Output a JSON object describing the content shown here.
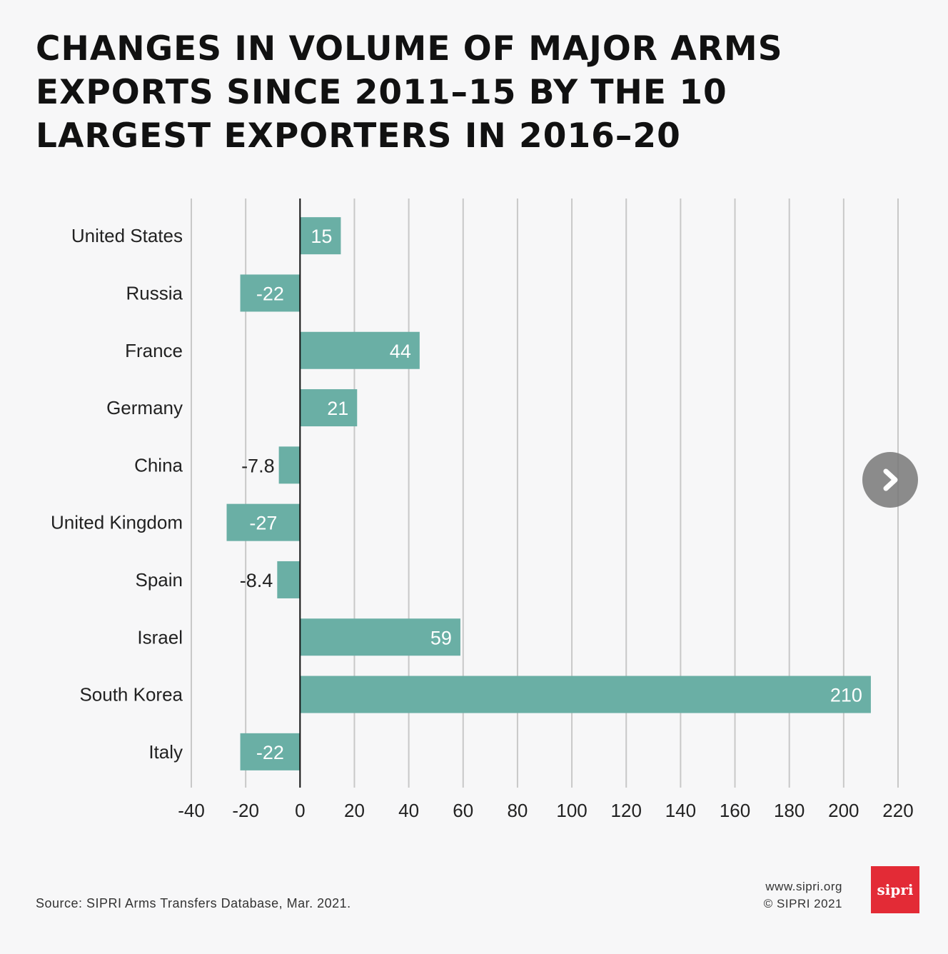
{
  "title_lines": [
    "CHANGES IN VOLUME OF MAJOR ARMS",
    "EXPORTS SINCE 2011–15 BY THE 10",
    "LARGEST EXPORTERS IN 2016–20"
  ],
  "chart_data": {
    "type": "bar",
    "orientation": "horizontal",
    "title": "CHANGES IN VOLUME OF MAJOR ARMS EXPORTS SINCE 2011–15 BY THE 10 LARGEST EXPORTERS IN 2016–20",
    "categories": [
      "United States",
      "Russia",
      "France",
      "Germany",
      "China",
      "United Kingdom",
      "Spain",
      "Israel",
      "South Korea",
      "Italy"
    ],
    "values": [
      15,
      -22,
      44,
      21,
      -7.8,
      -27,
      -8.4,
      59,
      210,
      -22
    ],
    "value_labels": [
      "15",
      "-22",
      "44",
      "21",
      "-7.8",
      "-27",
      "-8.4",
      "59",
      "210",
      "-22"
    ],
    "xlim": [
      -40,
      220
    ],
    "x_ticks": [
      -40,
      -20,
      0,
      20,
      40,
      60,
      80,
      100,
      120,
      140,
      160,
      180,
      200,
      220
    ],
    "x_tick_labels": [
      "-40",
      "-20",
      "0",
      "20",
      "40",
      "60",
      "80",
      "100",
      "120",
      "140",
      "160",
      "180",
      "200",
      "220"
    ],
    "grid": true,
    "bar_color": "#6aafa5"
  },
  "footer": {
    "source": "Source: SIPRI Arms Transfers Database, Mar. 2021.",
    "url": "www.sipri.org",
    "copyright": "© SIPRI 2021",
    "logo_text": "sipri"
  },
  "colors": {
    "background": "#f7f7f8",
    "bar": "#6aafa5",
    "logo": "#e32b36",
    "grid": "#c8c8c8"
  },
  "next_button": {
    "icon": "chevron-right-icon"
  }
}
